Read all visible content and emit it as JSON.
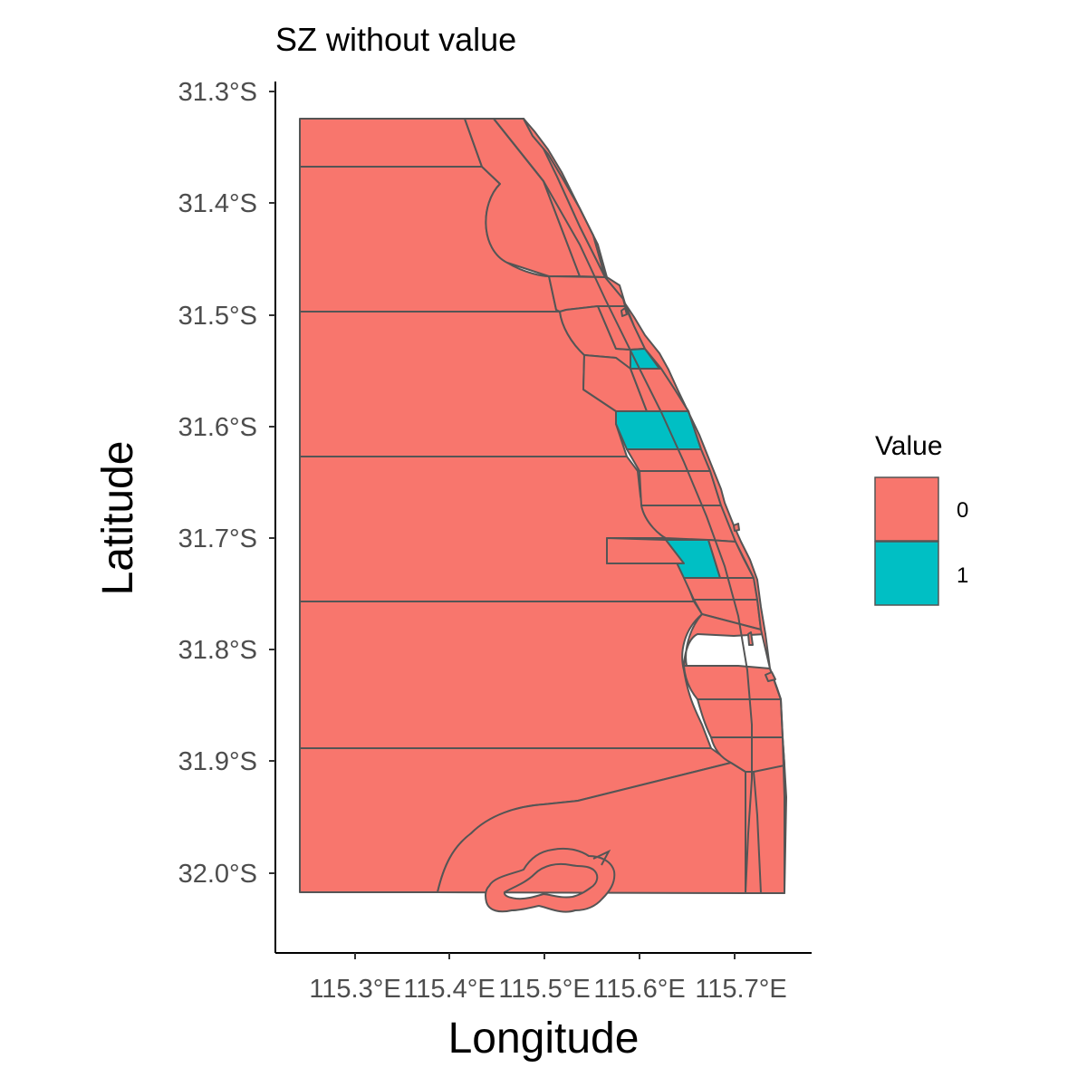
{
  "title": "SZ without value",
  "x_axis": {
    "label": "Longitude",
    "ticks": [
      "115.3°E",
      "115.4°E",
      "115.5°E",
      "115.6°E",
      "115.7°E"
    ]
  },
  "y_axis": {
    "label": "Latitude",
    "ticks": [
      "31.3°S",
      "31.4°S",
      "31.5°S",
      "31.6°S",
      "31.7°S",
      "31.8°S",
      "31.9°S",
      "32.0°S"
    ]
  },
  "legend": {
    "title": "Value",
    "items": [
      {
        "label": "0",
        "color": "#F8766D"
      },
      {
        "label": "1",
        "color": "#00BFC4"
      }
    ]
  },
  "colors": {
    "value_0": "#F8766D",
    "value_1": "#00BFC4",
    "border": "#555555"
  },
  "chart_data": {
    "type": "choropleth",
    "fill_variable": "Value",
    "categories": [
      "0",
      "1"
    ],
    "zones_with_value_1": 3
  }
}
